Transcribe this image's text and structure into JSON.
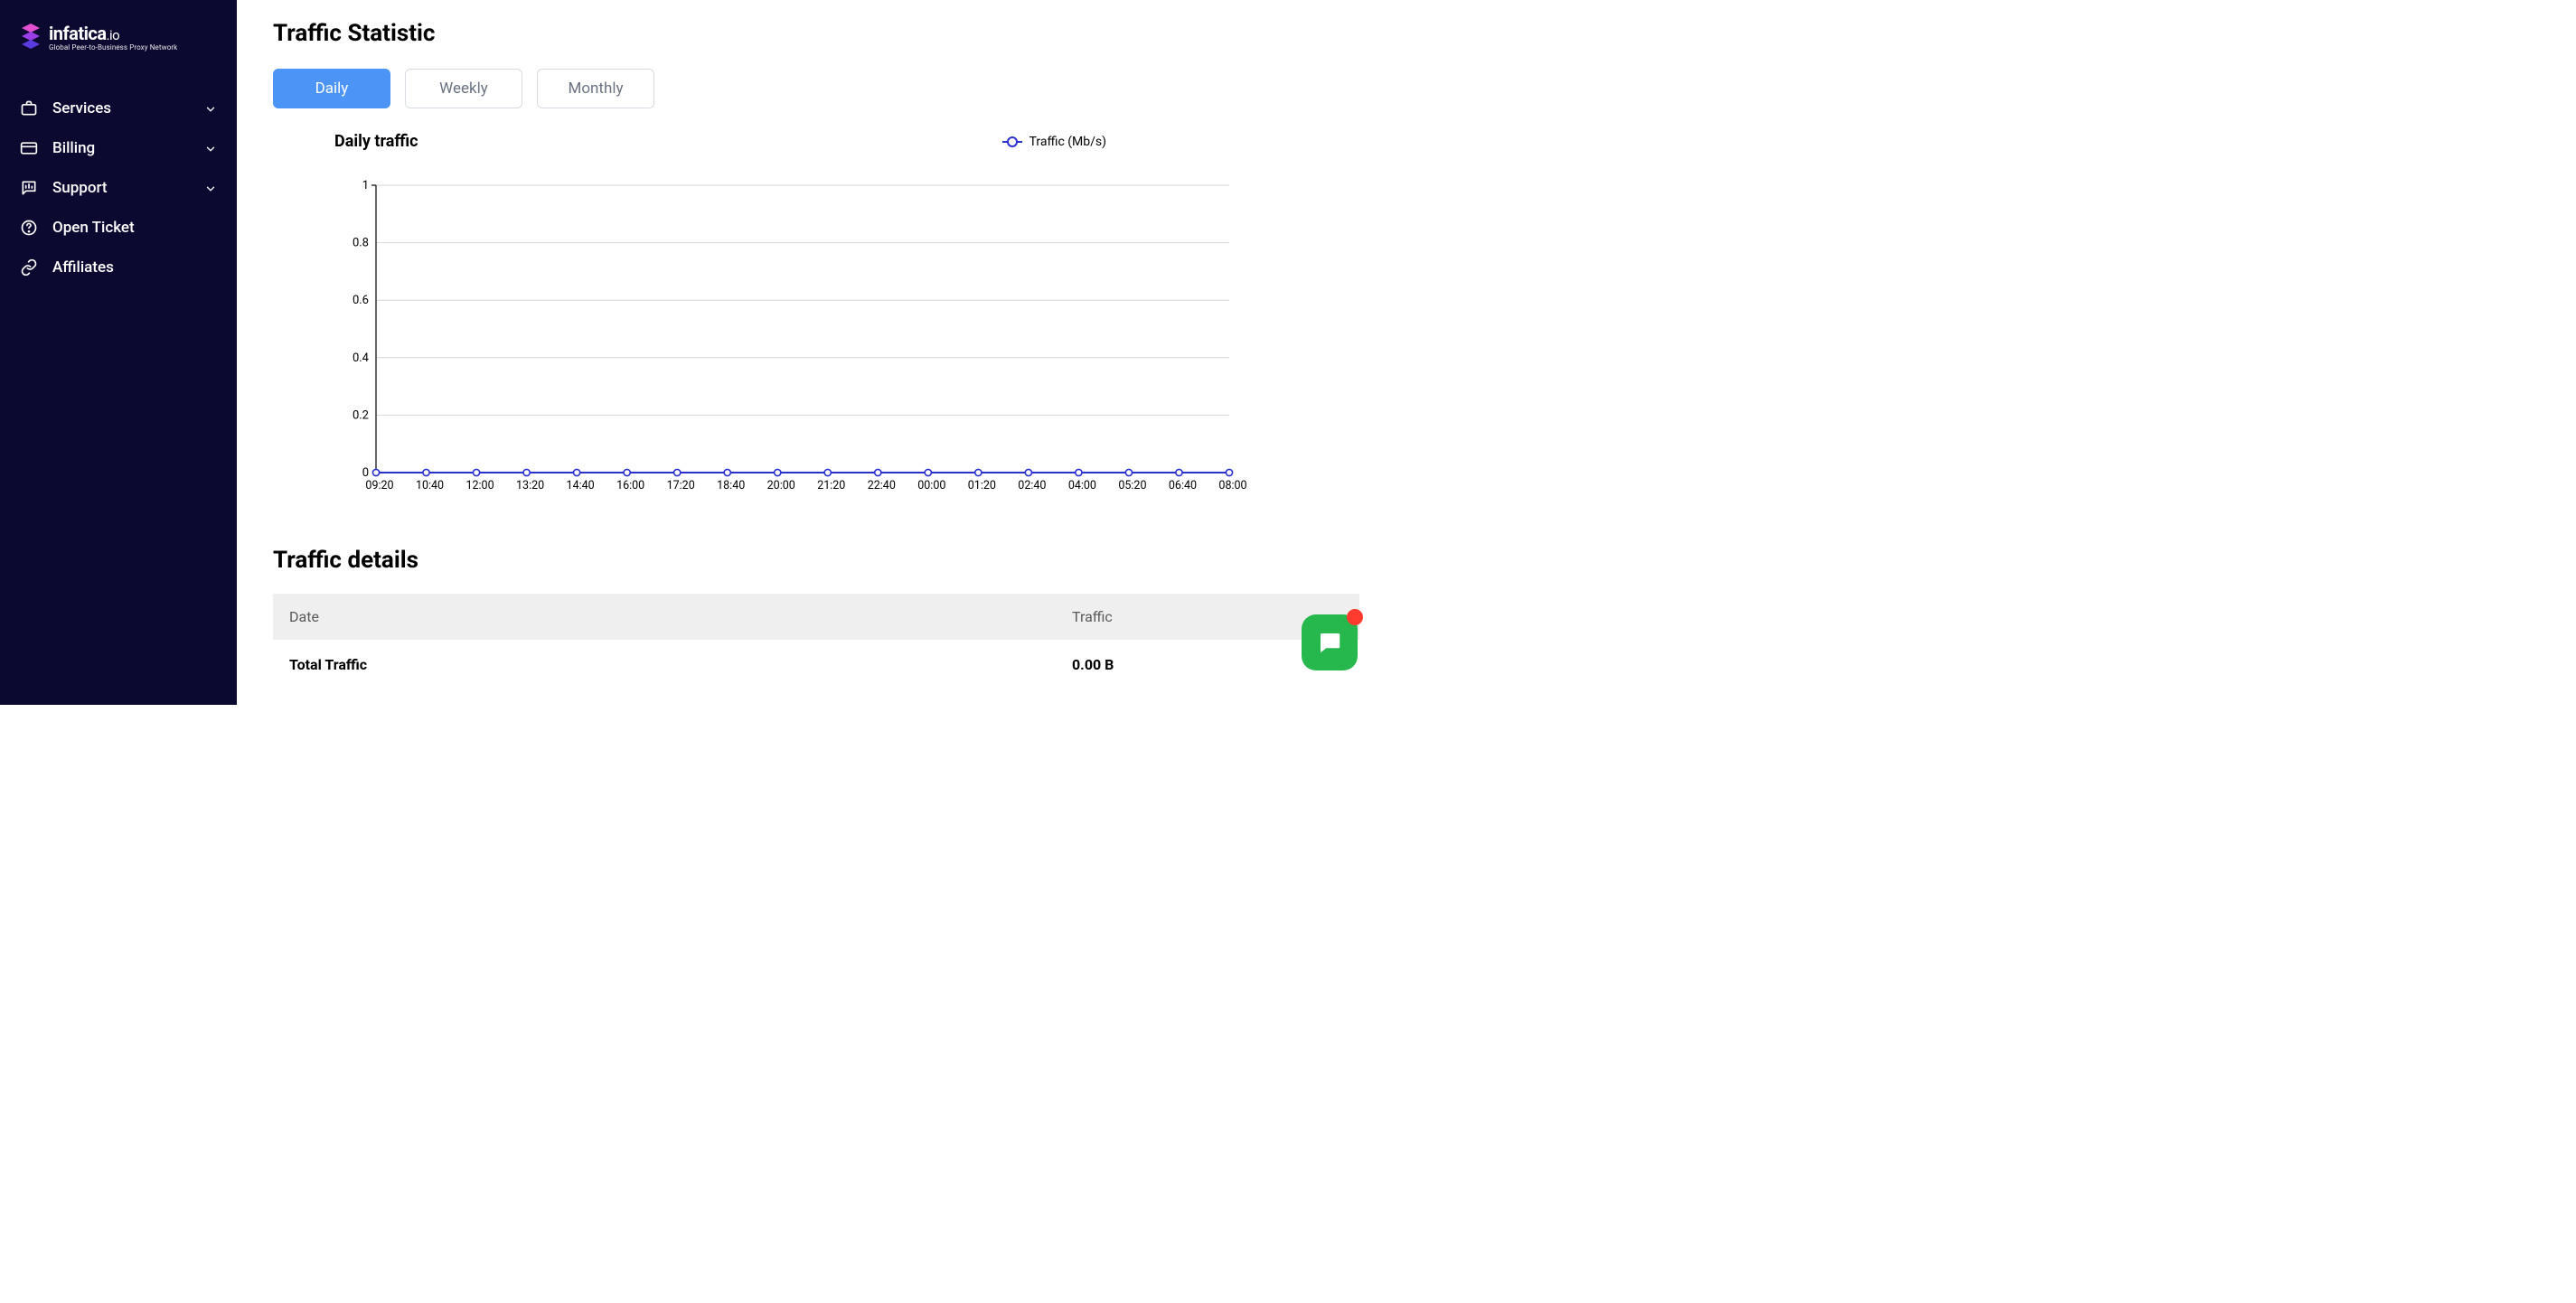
{
  "brand": {
    "name": "infatica",
    "suffix": ".io",
    "tagline": "Global Peer-to-Business Proxy Network",
    "mark_colors": {
      "top": "#e24fd1",
      "mid": "#9a3ee8",
      "bot": "#5a3be0"
    }
  },
  "sidebar": {
    "bg": "#0c0930",
    "items": [
      {
        "id": "services",
        "label": "Services",
        "icon": "briefcase",
        "expandable": true
      },
      {
        "id": "billing",
        "label": "Billing",
        "icon": "card",
        "expandable": true
      },
      {
        "id": "support",
        "label": "Support",
        "icon": "chat-graph",
        "expandable": true
      },
      {
        "id": "openticket",
        "label": "Open Ticket",
        "icon": "help-circle",
        "expandable": false
      },
      {
        "id": "affiliates",
        "label": "Affiliates",
        "icon": "link",
        "expandable": false
      }
    ]
  },
  "page": {
    "title": "Traffic Statistic",
    "tabs": [
      {
        "id": "daily",
        "label": "Daily",
        "active": true
      },
      {
        "id": "weekly",
        "label": "Weekly",
        "active": false
      },
      {
        "id": "monthly",
        "label": "Monthly",
        "active": false
      }
    ]
  },
  "chart": {
    "type": "line",
    "title": "Daily traffic",
    "legend_label": "Traffic (Mb/s)",
    "line_color": "#2a2fcf",
    "marker_fill": "#ffffff",
    "marker_radius": 3.6,
    "grid_color": "#d6d6d6",
    "axis_color": "#000000",
    "background_color": "#ffffff",
    "ylim": [
      0,
      1
    ],
    "ytick_step": 0.2,
    "ytick_labels": [
      "0",
      "0.2",
      "0.4",
      "0.6",
      "0.8",
      "1"
    ],
    "x_labels": [
      "09:20",
      "10:40",
      "12:00",
      "13:20",
      "14:40",
      "16:00",
      "17:20",
      "18:40",
      "20:00",
      "21:20",
      "22:40",
      "00:00",
      "01:20",
      "02:40",
      "04:00",
      "05:20",
      "06:40",
      "08:00"
    ],
    "y_values": [
      0,
      0,
      0,
      0,
      0,
      0,
      0,
      0,
      0,
      0,
      0,
      0,
      0,
      0,
      0,
      0,
      0,
      0
    ],
    "label_fontsize": 13
  },
  "details": {
    "title": "Traffic details",
    "columns": [
      {
        "id": "date",
        "label": "Date"
      },
      {
        "id": "traffic",
        "label": "Traffic"
      }
    ],
    "rows": [
      {
        "date": "Total Traffic",
        "traffic": "0.00 B",
        "bold": true
      }
    ]
  },
  "chat_fab": {
    "bg": "#26b84c",
    "notif_color": "#ff3b30"
  }
}
